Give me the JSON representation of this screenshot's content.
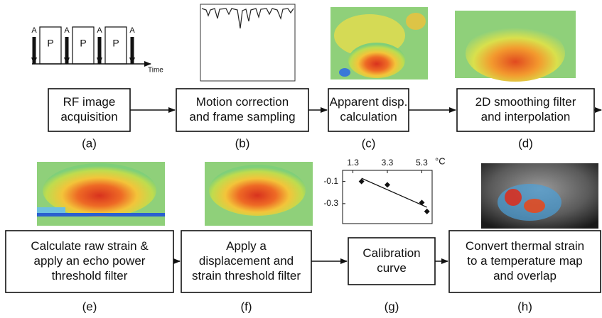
{
  "pulse_diagram": {
    "labels": [
      "A",
      "P",
      "A",
      "P",
      "A",
      "P",
      "A"
    ],
    "axis_label": "Time"
  },
  "steps": [
    {
      "text_lines": [
        "RF image",
        "acquisition"
      ],
      "label": "(a)"
    },
    {
      "text_lines": [
        "Motion correction",
        "and frame sampling"
      ],
      "label": "(b)"
    },
    {
      "text_lines": [
        "Apparent disp.",
        "calculation"
      ],
      "label": "(c)"
    },
    {
      "text_lines": [
        "2D smoothing filter",
        "and interpolation"
      ],
      "label": "(d)"
    },
    {
      "text_lines": [
        "Calculate raw strain &",
        "apply an echo power",
        "threshold filter"
      ],
      "label": "(e)"
    },
    {
      "text_lines": [
        "Apply a",
        "displacement and",
        "strain threshold filter"
      ],
      "label": "(f)"
    },
    {
      "text_lines": [
        "Calibration",
        "curve"
      ],
      "label": "(g)"
    },
    {
      "text_lines": [
        "Convert thermal strain",
        "to a temperature map",
        "and overlap"
      ],
      "label": "(h)"
    }
  ],
  "calibration_plot": {
    "type": "scatter",
    "x": [
      1.8,
      3.3,
      5.3,
      5.6
    ],
    "y": [
      -0.1,
      -0.13,
      -0.29,
      -0.37
    ],
    "xlim": [
      0.7,
      5.9
    ],
    "ylim": [
      0,
      -0.48
    ],
    "xticks": [
      1.3,
      3.3,
      5.3
    ],
    "yticks": [
      -0.1,
      -0.3
    ],
    "x_unit": "°C"
  }
}
